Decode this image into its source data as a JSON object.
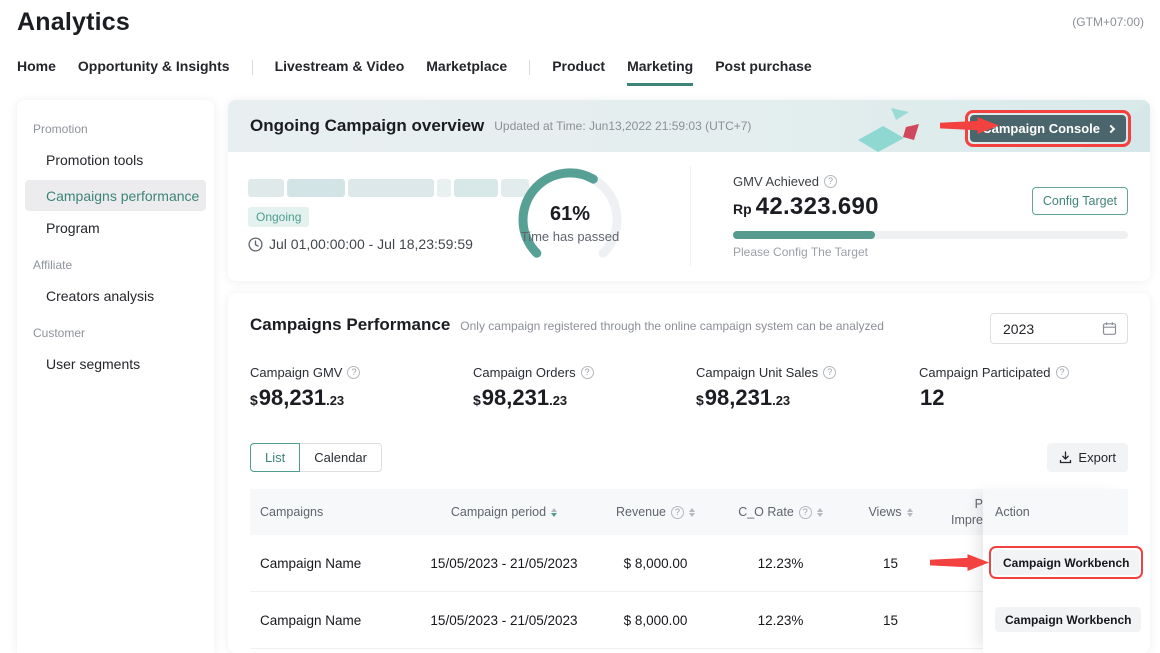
{
  "page": {
    "title": "Analytics",
    "timezone": "(GTM+07:00)"
  },
  "colors": {
    "accent_teal": "#4e9d8e",
    "accent_dark": "#3d8578",
    "highlight_red": "#f2413e",
    "console_button_bg": "#4a656b"
  },
  "nav": {
    "items": [
      {
        "label": "Home"
      },
      {
        "label": "Opportunity & Insights"
      },
      {
        "label": "Livestream & Video"
      },
      {
        "label": "Marketplace"
      },
      {
        "label": "Product"
      },
      {
        "label": "Marketing",
        "active": true
      },
      {
        "label": "Post purchase"
      }
    ]
  },
  "sidebar": {
    "sections": [
      {
        "title": "Promotion",
        "items": [
          "Promotion tools",
          "Campaigns performance",
          "Program"
        ]
      },
      {
        "title": "Affiliate",
        "items": [
          "Creators analysis"
        ]
      },
      {
        "title": "Customer",
        "items": [
          "User segments"
        ]
      }
    ],
    "selected_item": "Campaigns performance"
  },
  "banner": {
    "title": "Ongoing Campaign overview",
    "updated_text": "Updated at Time: Jun13,2022 21:59:03 (UTC+7)",
    "console_button_label": "Campaign Console"
  },
  "overview": {
    "status_badge": "Ongoing",
    "schedule": "Jul 01,00:00:00 - Jul 18,23:59:59",
    "gauge": {
      "percent": 61,
      "percent_label": "61%",
      "caption": "Time has passed"
    },
    "gmv": {
      "label": "GMV Achieved",
      "currency": "Rp",
      "amount": "42.323.690",
      "config_button_label": "Config Target",
      "progress_percent": 36,
      "hint": "Please Config The Target"
    }
  },
  "performance": {
    "title": "Campaigns Performance",
    "subtitle": "Only campaign registered through the online campaign system can be analyzed",
    "year_filter": "2023",
    "metrics": [
      {
        "label": "Campaign GMV",
        "prefix": "$",
        "value": "98,231",
        "decimals": ".23"
      },
      {
        "label": "Campaign Orders",
        "prefix": "$",
        "value": "98,231",
        "decimals": ".23"
      },
      {
        "label": "Campaign Unit Sales",
        "prefix": "$",
        "value": "98,231",
        "decimals": ".23"
      },
      {
        "label": "Campaign Participated",
        "prefix": "",
        "value": "12",
        "decimals": ""
      }
    ],
    "view_toggle": {
      "list_label": "List",
      "calendar_label": "Calendar",
      "selected": "List"
    },
    "export_label": "Export"
  },
  "table": {
    "headers": {
      "campaigns": "Campaigns",
      "period": "Campaign period",
      "revenue": "Revenue",
      "co_rate": "C_O Rate",
      "views": "Views",
      "hidden_col_line1": "P",
      "hidden_col_line2": "Impre",
      "action": "Action"
    },
    "rows": [
      {
        "name": "Campaign Name",
        "period": "15/05/2023 - 21/05/2023",
        "revenue": "$ 8,000.00",
        "co_rate": "12.23%",
        "views": "15",
        "action_label": "Campaign Workbench",
        "highlighted": true
      },
      {
        "name": "Campaign Name",
        "period": "15/05/2023 - 21/05/2023",
        "revenue": "$ 8,000.00",
        "co_rate": "12.23%",
        "views": "15",
        "action_label": "Campaign Workbench",
        "highlighted": false
      }
    ]
  }
}
